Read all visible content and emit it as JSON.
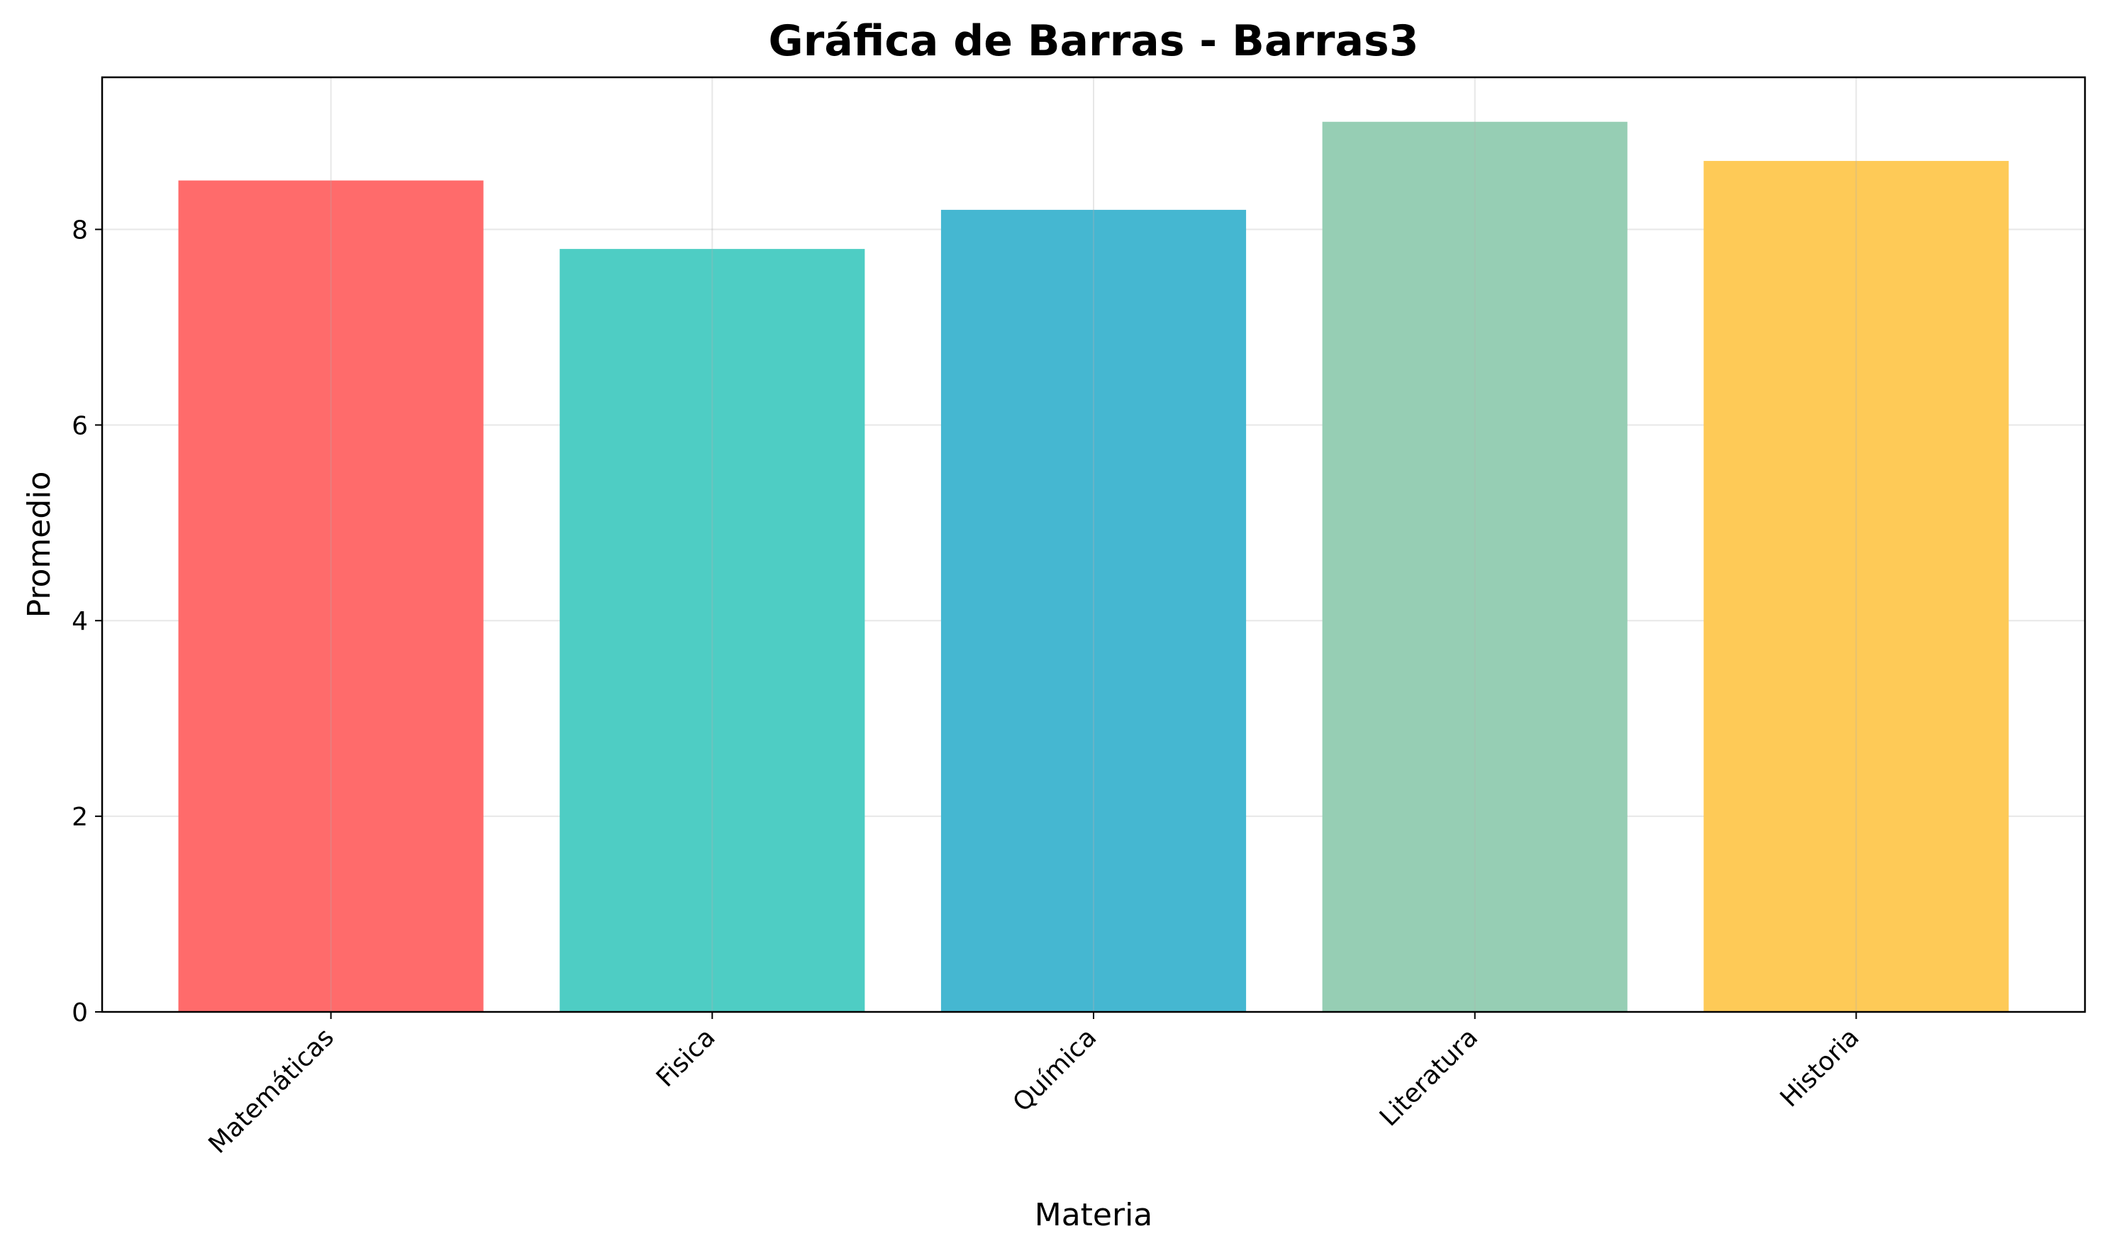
{
  "chart_data": {
    "type": "bar",
    "title": "Gráfica de Barras - Barras3",
    "xlabel": "Materia",
    "ylabel": "Promedio",
    "categories": [
      "Matemáticas",
      "Fisica",
      "Química",
      "Literatura",
      "Historia"
    ],
    "values": [
      8.5,
      7.8,
      8.2,
      9.1,
      8.7
    ],
    "colors": [
      "#FF6B6B",
      "#4ECDC4",
      "#45B7D1",
      "#96CEB4",
      "#FECA57"
    ],
    "ylim": [
      0,
      9.555
    ],
    "yticks": [
      0,
      2,
      4,
      6,
      8
    ],
    "ytick_labels": [
      "0",
      "2",
      "4",
      "6",
      "8"
    ],
    "grid": true,
    "legend": false
  }
}
